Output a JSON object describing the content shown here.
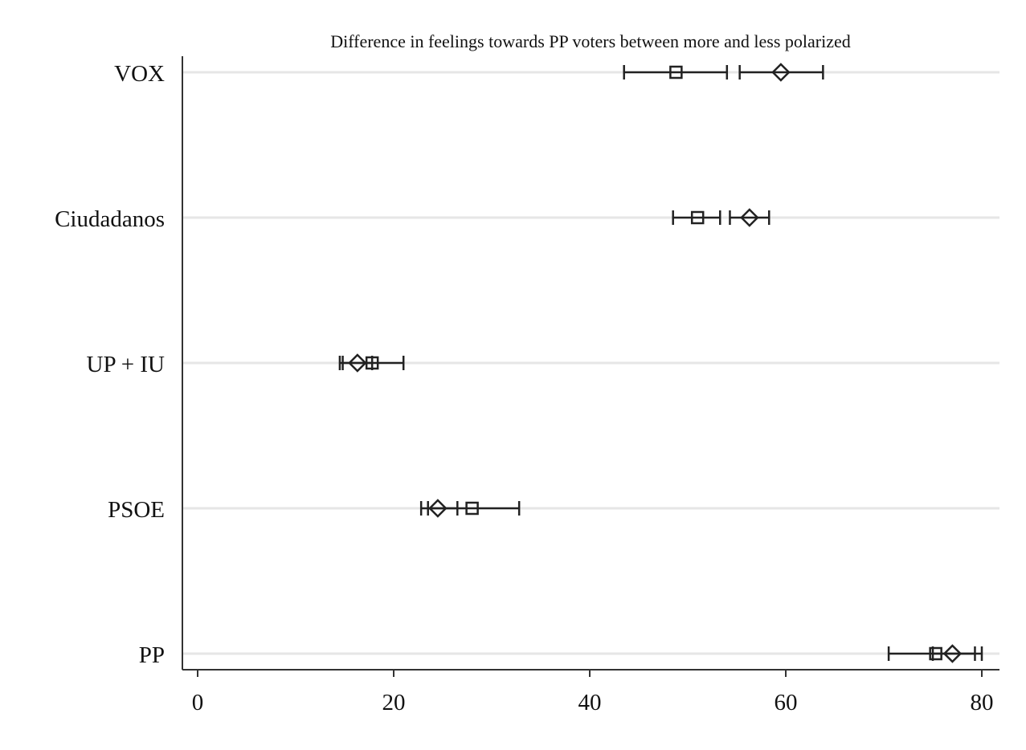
{
  "chart_data": {
    "type": "dot-ci",
    "title": "Difference in feelings towards PP voters between more and less polarized",
    "categories": [
      "VOX",
      "Ciudadanos",
      "UP + IU",
      "PSOE",
      "PP"
    ],
    "xlim": [
      0,
      80
    ],
    "xticks": [
      0,
      20,
      40,
      60,
      80
    ],
    "grid": true,
    "series": [
      {
        "marker": "square",
        "points": [
          {
            "category": "VOX",
            "value": 48.8,
            "ci": [
              43.5,
              54.0
            ]
          },
          {
            "category": "Ciudadanos",
            "value": 51.0,
            "ci": [
              48.5,
              53.3
            ]
          },
          {
            "category": "UP + IU",
            "value": 17.8,
            "ci": [
              14.8,
              21.0
            ]
          },
          {
            "category": "PSOE",
            "value": 28.0,
            "ci": [
              23.5,
              32.8
            ]
          },
          {
            "category": "PP",
            "value": 75.3,
            "ci": [
              70.5,
              80.0
            ]
          }
        ]
      },
      {
        "marker": "diamond",
        "points": [
          {
            "category": "VOX",
            "value": 59.5,
            "ci": [
              55.3,
              63.8
            ]
          },
          {
            "category": "Ciudadanos",
            "value": 56.3,
            "ci": [
              54.3,
              58.3
            ]
          },
          {
            "category": "UP + IU",
            "value": 16.3,
            "ci": [
              14.5,
              17.8
            ]
          },
          {
            "category": "PSOE",
            "value": 24.5,
            "ci": [
              22.8,
              26.5
            ]
          },
          {
            "category": "PP",
            "value": 77.0,
            "ci": [
              75.0,
              79.3
            ]
          }
        ]
      }
    ]
  }
}
